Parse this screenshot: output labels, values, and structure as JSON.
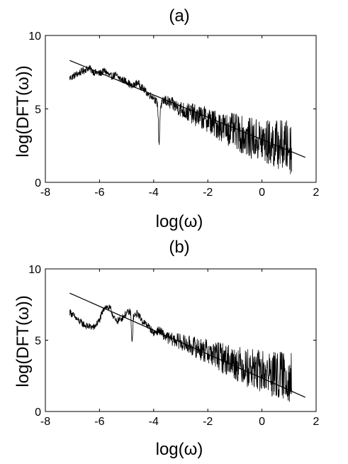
{
  "chart_data": [
    {
      "type": "line",
      "title": "(a)",
      "xlabel": "log(ω)",
      "ylabel": "log(DFT(ω))",
      "xlim": [
        -8,
        2
      ],
      "ylim": [
        0,
        10
      ],
      "xticks": [
        "-8",
        "-6",
        "-4",
        "-2",
        "0",
        "2"
      ],
      "yticks": [
        "0",
        "5",
        "10"
      ],
      "grid": false,
      "legend": "none",
      "series": [
        {
          "kind": "spectrum",
          "color": "#000000",
          "x_range": [
            -7.1,
            1.1
          ],
          "mean_trend": {
            "intercept": 4.1,
            "slope": -0.6
          },
          "x": [
            -7.1,
            -6.8,
            -6.6,
            -6.4,
            -6.2,
            -6.0,
            -5.8,
            -5.6,
            -5.4,
            -5.2,
            -5.0,
            -4.8,
            -4.6,
            -4.4,
            -4.2,
            -4.0,
            -3.85,
            -3.8,
            -3.75,
            -3.6,
            -3.4,
            -3.2,
            -3.0,
            -2.8,
            -2.6,
            -2.4,
            -2.2,
            -2.0,
            -1.8,
            -1.6,
            -1.4,
            -1.2,
            -1.0,
            -0.8,
            -0.6,
            -0.4,
            -0.2,
            0.0,
            0.2,
            0.4,
            0.6,
            0.8,
            1.0,
            1.1
          ],
          "y": [
            7.1,
            7.4,
            7.6,
            7.8,
            7.5,
            7.4,
            7.6,
            7.2,
            7.3,
            7.0,
            6.9,
            6.5,
            6.8,
            6.4,
            6.0,
            5.8,
            5.3,
            2.4,
            5.2,
            5.6,
            5.4,
            5.2,
            5.0,
            4.8,
            4.7,
            4.5,
            4.4,
            4.3,
            4.0,
            3.9,
            3.7,
            3.6,
            3.5,
            3.3,
            3.1,
            3.0,
            2.9,
            2.8,
            2.7,
            2.6,
            2.6,
            2.5,
            2.4,
            2.4
          ]
        },
        {
          "kind": "fit",
          "color": "#000000",
          "x": [
            -7.1,
            1.6
          ],
          "y": [
            8.3,
            1.7
          ]
        }
      ]
    },
    {
      "type": "line",
      "title": "(b)",
      "xlabel": "log(ω)",
      "ylabel": "log(DFT(ω))",
      "xlim": [
        -8,
        2
      ],
      "ylim": [
        0,
        10
      ],
      "xticks": [
        "-8",
        "-6",
        "-4",
        "-2",
        "0",
        "2"
      ],
      "yticks": [
        "0",
        "5",
        "10"
      ],
      "grid": false,
      "legend": "none",
      "series": [
        {
          "kind": "spectrum",
          "color": "#000000",
          "x_range": [
            -7.1,
            1.1
          ],
          "mean_trend": {
            "intercept": 4.1,
            "slope": -0.6
          },
          "x": [
            -7.1,
            -6.8,
            -6.5,
            -6.2,
            -6.0,
            -5.8,
            -5.6,
            -5.4,
            -5.2,
            -5.0,
            -4.85,
            -4.8,
            -4.75,
            -4.6,
            -4.4,
            -4.2,
            -4.0,
            -3.8,
            -3.6,
            -3.4,
            -3.2,
            -3.0,
            -2.8,
            -2.6,
            -2.4,
            -2.2,
            -2.0,
            -1.8,
            -1.6,
            -1.4,
            -1.2,
            -1.0,
            -0.8,
            -0.6,
            -0.4,
            -0.2,
            0.0,
            0.2,
            0.4,
            0.6,
            0.8,
            1.0,
            1.1
          ],
          "y": [
            7.0,
            6.4,
            6.0,
            5.9,
            6.4,
            7.4,
            7.2,
            6.3,
            6.5,
            6.9,
            7.0,
            4.6,
            6.6,
            6.9,
            6.3,
            6.0,
            5.5,
            5.7,
            5.3,
            5.1,
            5.0,
            4.9,
            4.7,
            4.6,
            4.5,
            4.3,
            4.2,
            4.0,
            3.9,
            3.7,
            3.6,
            3.4,
            3.3,
            3.1,
            3.0,
            2.9,
            2.8,
            2.7,
            2.6,
            2.5,
            2.5,
            2.4,
            2.4
          ]
        },
        {
          "kind": "fit",
          "color": "#000000",
          "x": [
            -7.1,
            1.6
          ],
          "y": [
            8.3,
            1.0
          ]
        }
      ]
    }
  ]
}
